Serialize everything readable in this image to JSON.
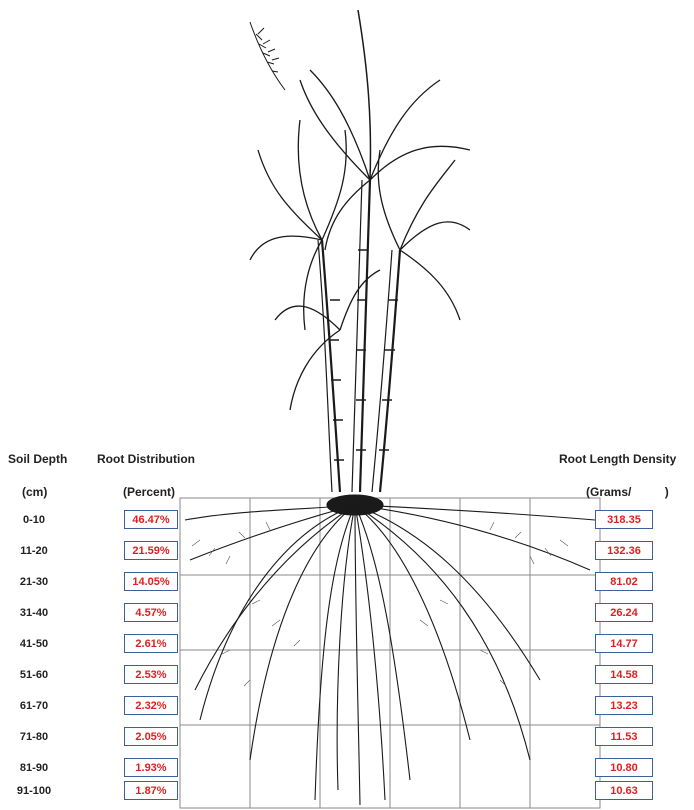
{
  "headers": {
    "soil_depth": "Soil Depth",
    "soil_depth_unit": "(cm)",
    "root_distribution": "Root Distribution",
    "root_distribution_unit": "(Percent)",
    "root_length_density": "Root Length Density",
    "root_length_density_unit": "(Grams/          )"
  },
  "rows": [
    {
      "depth": "0-10",
      "percent": "46.47%",
      "density": "318.35"
    },
    {
      "depth": "11-20",
      "percent": "21.59%",
      "density": "132.36"
    },
    {
      "depth": "21-30",
      "percent": "14.05%",
      "density": "81.02"
    },
    {
      "depth": "31-40",
      "percent": "4.57%",
      "density": "26.24"
    },
    {
      "depth": "41-50",
      "percent": "2.61%",
      "density": "14.77"
    },
    {
      "depth": "51-60",
      "percent": "2.53%",
      "density": "14.58"
    },
    {
      "depth": "61-70",
      "percent": "2.32%",
      "density": "13.23"
    },
    {
      "depth": "71-80",
      "percent": "2.05%",
      "density": "11.53"
    },
    {
      "depth": "81-90",
      "percent": "1.93%",
      "density": "10.80"
    },
    {
      "depth": "91-100",
      "percent": "1.87%",
      "density": "10.63"
    }
  ],
  "colors": {
    "value_text": "#e02020",
    "box_border": "#3d5f9a",
    "line_art": "#1a1a1a",
    "grid": "#8a8a8a"
  },
  "illustration": "sugarcane-plant-with-root-system"
}
